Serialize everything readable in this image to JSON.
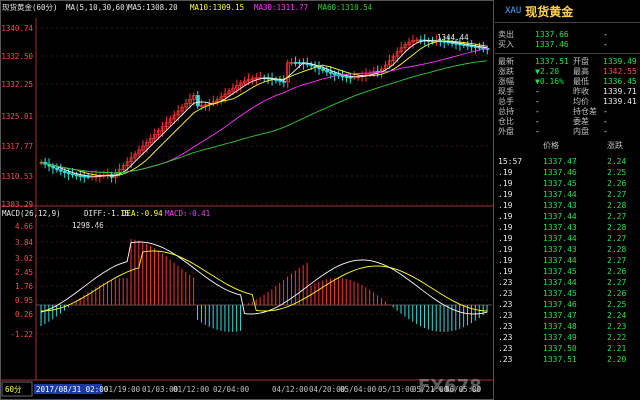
{
  "chart": {
    "title": "现货黄金(60分)",
    "ma_prefix": "MA(5,10,30,60)",
    "ma5": "MA5:1308.20",
    "ma10": "MA10:1309.15",
    "ma30": "MA30:1311.77",
    "ma60": "MA60:1310.54",
    "high_label": "1344.44",
    "low_label": "1298.46",
    "price_ticks": [
      "1340.74",
      "1332.50",
      "1332.25",
      "1325.01",
      "1317.77",
      "1310.53",
      "1303.29"
    ],
    "macd_prefix": "MACD(26,12,9)",
    "diff": "DIFF:-1.15",
    "dea": "DEA:-0.94",
    "macd": "MACD:-0.41",
    "macd_ticks": [
      "4.66",
      "3.84",
      "3.02",
      "2.45",
      "1.76",
      "0.95",
      "0.26",
      "-1.22"
    ],
    "period_button": "60分",
    "time_ticks": [
      "2017/08/31 02:00",
      "31/19:00",
      "01/03:00",
      "01/12:00",
      "02/04:00",
      "04/12:00",
      "04/20:00",
      "05/04:00",
      "05/13:00",
      "05/21:00",
      "06/05:00"
    ],
    "colors": {
      "up": "#ff3333",
      "down": "#33dddd",
      "ma5": "#ffffff",
      "ma10": "#ffff33",
      "ma30": "#ff33ff",
      "ma60": "#33cc33"
    }
  },
  "quote": {
    "symbol": "XAU",
    "name": "现货黄金",
    "rows": [
      {
        "l1": "卖出",
        "v1": "1337.66",
        "l2": "",
        "v2": "-"
      },
      {
        "l1": "买入",
        "v1": "1337.46",
        "l2": "",
        "v2": "-"
      },
      {
        "l1": "最新",
        "v1": "1337.51",
        "l2": "开盘",
        "v2": "1339.49"
      },
      {
        "l1": "涨跌",
        "v1": "▼2.20",
        "l2": "最高",
        "v2": "1342.55"
      },
      {
        "l1": "涨幅",
        "v1": "▼0.16%",
        "l2": "最低",
        "v2": "1336.45"
      },
      {
        "l1": "现手",
        "v1": "-",
        "l2": "昨收",
        "v2": "1339.71"
      },
      {
        "l1": "总手",
        "v1": "-",
        "l2": "均价",
        "v2": "1339.41"
      },
      {
        "l1": "总持",
        "v1": "-",
        "l2": "持仓差",
        "v2": "-"
      },
      {
        "l1": "仓比",
        "v1": "-",
        "l2": "委差",
        "v2": "-"
      },
      {
        "l1": "外盘",
        "v1": "-",
        "l2": "内盘",
        "v2": "-"
      }
    ],
    "tick_headers": [
      "价格",
      "涨跌"
    ],
    "ticks": [
      {
        "t": "15:57",
        "p": "1337.47",
        "c": "2.24"
      },
      {
        "t": ".19",
        "p": "1337.46",
        "c": "2.25"
      },
      {
        "t": ".19",
        "p": "1337.45",
        "c": "2.26"
      },
      {
        "t": ".19",
        "p": "1337.44",
        "c": "2.27"
      },
      {
        "t": ".19",
        "p": "1337.43",
        "c": "2.28"
      },
      {
        "t": ".19",
        "p": "1337.44",
        "c": "2.27"
      },
      {
        "t": ".19",
        "p": "1337.43",
        "c": "2.28"
      },
      {
        "t": ".19",
        "p": "1337.44",
        "c": "2.27"
      },
      {
        "t": ".19",
        "p": "1337.43",
        "c": "2.28"
      },
      {
        "t": ".19",
        "p": "1337.44",
        "c": "2.27"
      },
      {
        "t": ".19",
        "p": "1337.45",
        "c": "2.26"
      },
      {
        "t": ".23",
        "p": "1337.44",
        "c": "2.27"
      },
      {
        "t": ".23",
        "p": "1337.45",
        "c": "2.26"
      },
      {
        "t": ".23",
        "p": "1337.46",
        "c": "2.25"
      },
      {
        "t": ".23",
        "p": "1337.47",
        "c": "2.24"
      },
      {
        "t": ".23",
        "p": "1337.48",
        "c": "2.23"
      },
      {
        "t": ".23",
        "p": "1337.49",
        "c": "2.22"
      },
      {
        "t": ".23",
        "p": "1337.50",
        "c": "2.21"
      },
      {
        "t": ".23",
        "p": "1337.51",
        "c": "2.20"
      }
    ]
  },
  "watermark": {
    "brand": "FX678"
  }
}
